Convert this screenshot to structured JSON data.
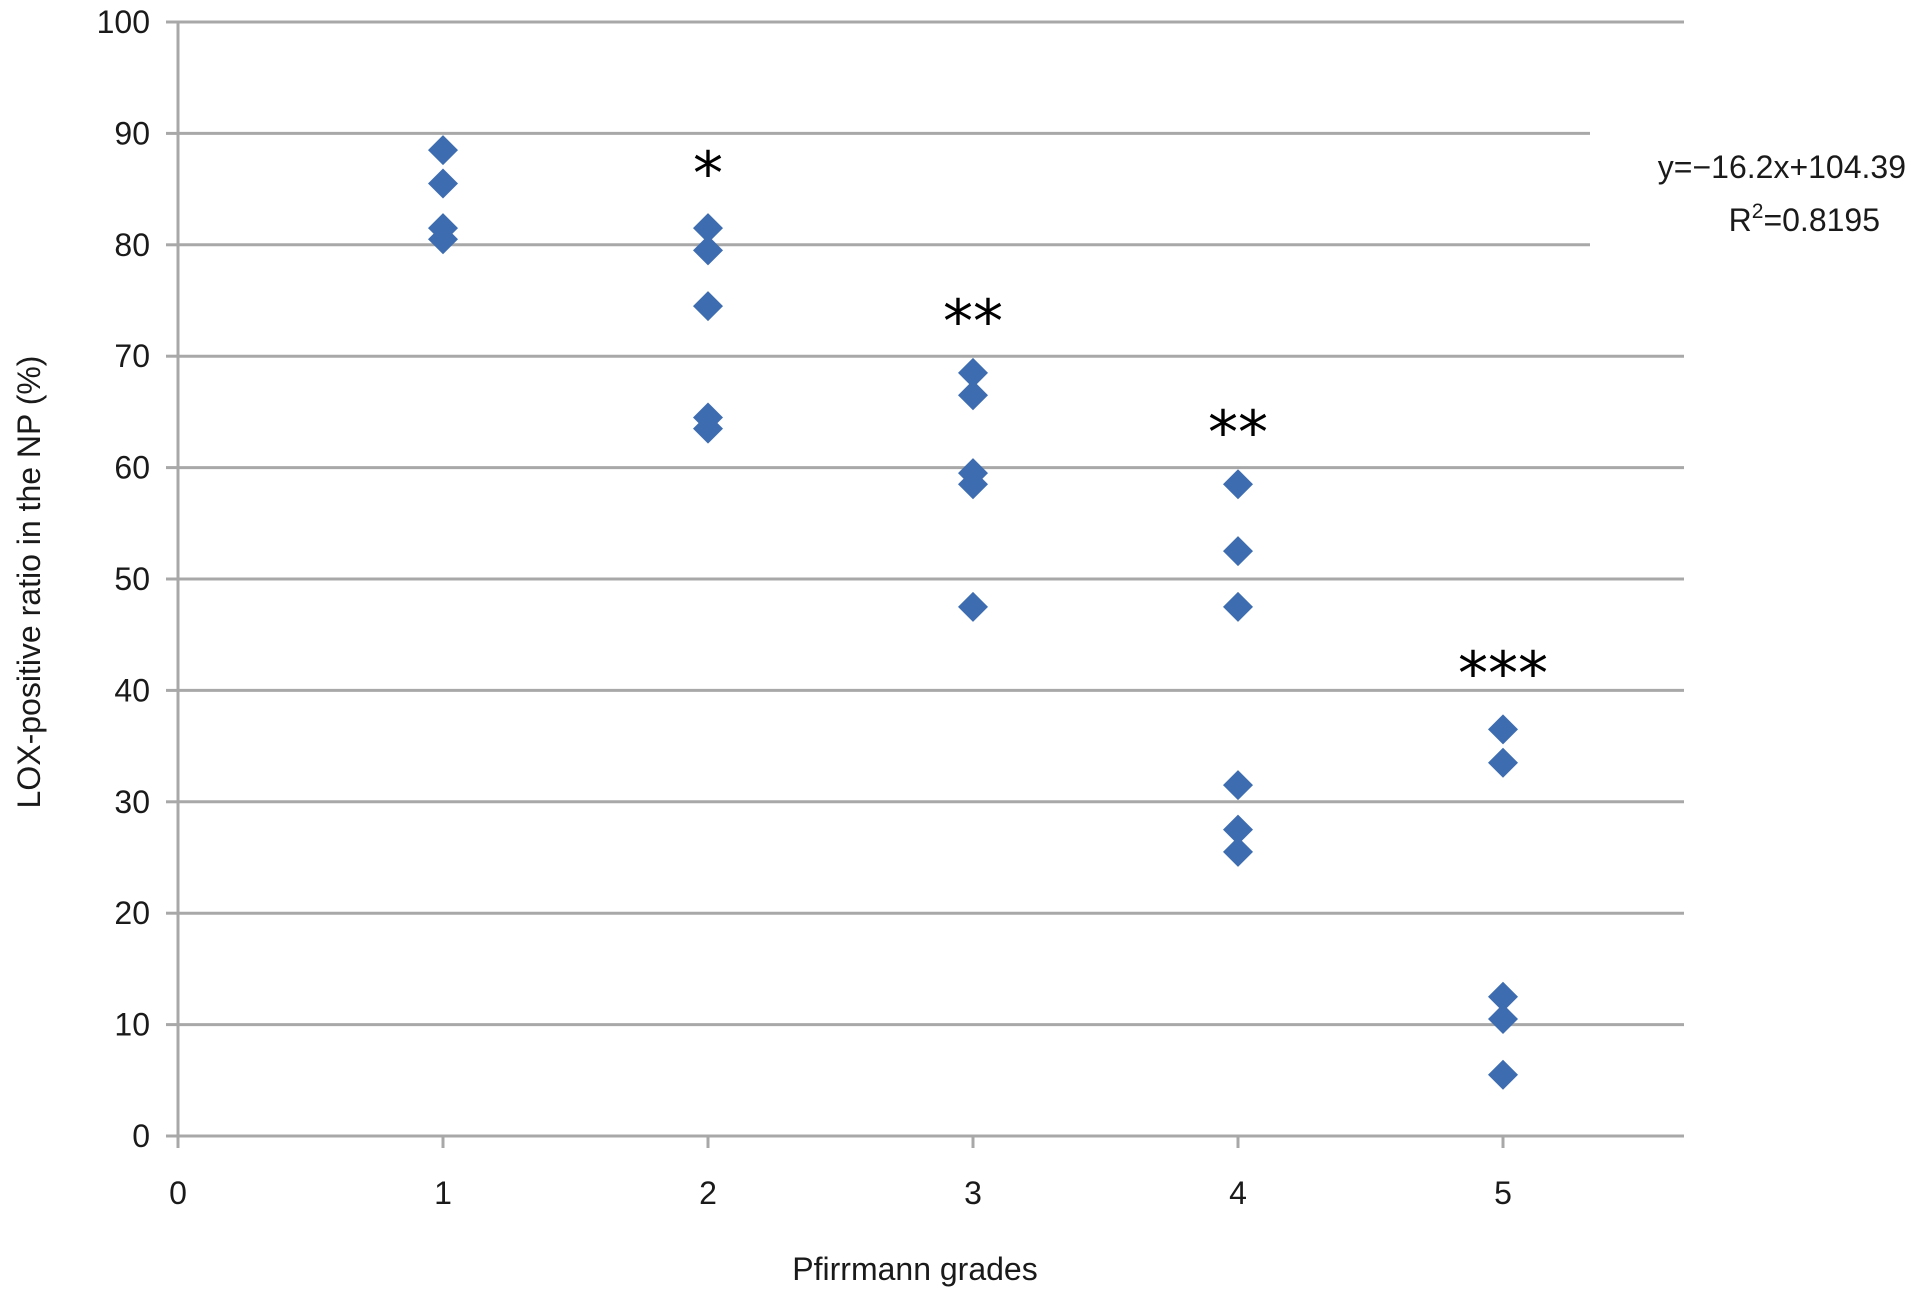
{
  "chart_data": {
    "type": "scatter",
    "title": "",
    "xlabel": "Pfirrmann grades",
    "ylabel": "LOX-positive ratio in the NP (%)",
    "xlim": [
      0,
      5.6
    ],
    "ylim": [
      0,
      100
    ],
    "x_ticks": [
      0,
      1,
      2,
      3,
      4,
      5
    ],
    "y_ticks": [
      0,
      10,
      20,
      30,
      40,
      50,
      60,
      70,
      80,
      90,
      100
    ],
    "grid": "horizontal",
    "marker": "diamond",
    "series": [
      {
        "color": "#3d6cb0",
        "points": [
          {
            "x": 1,
            "y": 88.5
          },
          {
            "x": 1,
            "y": 85.5
          },
          {
            "x": 1,
            "y": 81.5
          },
          {
            "x": 1,
            "y": 80.5
          },
          {
            "x": 2,
            "y": 81.5
          },
          {
            "x": 2,
            "y": 79.5
          },
          {
            "x": 2,
            "y": 74.5
          },
          {
            "x": 2,
            "y": 64.5
          },
          {
            "x": 2,
            "y": 63.5
          },
          {
            "x": 3,
            "y": 68.5
          },
          {
            "x": 3,
            "y": 66.5
          },
          {
            "x": 3,
            "y": 59.5
          },
          {
            "x": 3,
            "y": 58.5
          },
          {
            "x": 3,
            "y": 47.5
          },
          {
            "x": 4,
            "y": 58.5
          },
          {
            "x": 4,
            "y": 52.5
          },
          {
            "x": 4,
            "y": 47.5
          },
          {
            "x": 4,
            "y": 31.5
          },
          {
            "x": 4,
            "y": 27.5
          },
          {
            "x": 4,
            "y": 25.5
          },
          {
            "x": 5,
            "y": 36.5
          },
          {
            "x": 5,
            "y": 33.5
          },
          {
            "x": 5,
            "y": 12.5
          },
          {
            "x": 5,
            "y": 10.5
          },
          {
            "x": 5,
            "y": 5.5
          }
        ]
      }
    ],
    "significance_markers": [
      {
        "x": 2,
        "label": "*"
      },
      {
        "x": 3,
        "label": "**"
      },
      {
        "x": 4,
        "label": "**"
      },
      {
        "x": 5,
        "label": "***"
      }
    ],
    "annotations": {
      "equation": "y=−16.2x+104.39",
      "r_squared_prefix": "R",
      "r_squared_exponent": "2",
      "r_squared_value": "=0.8195"
    }
  }
}
